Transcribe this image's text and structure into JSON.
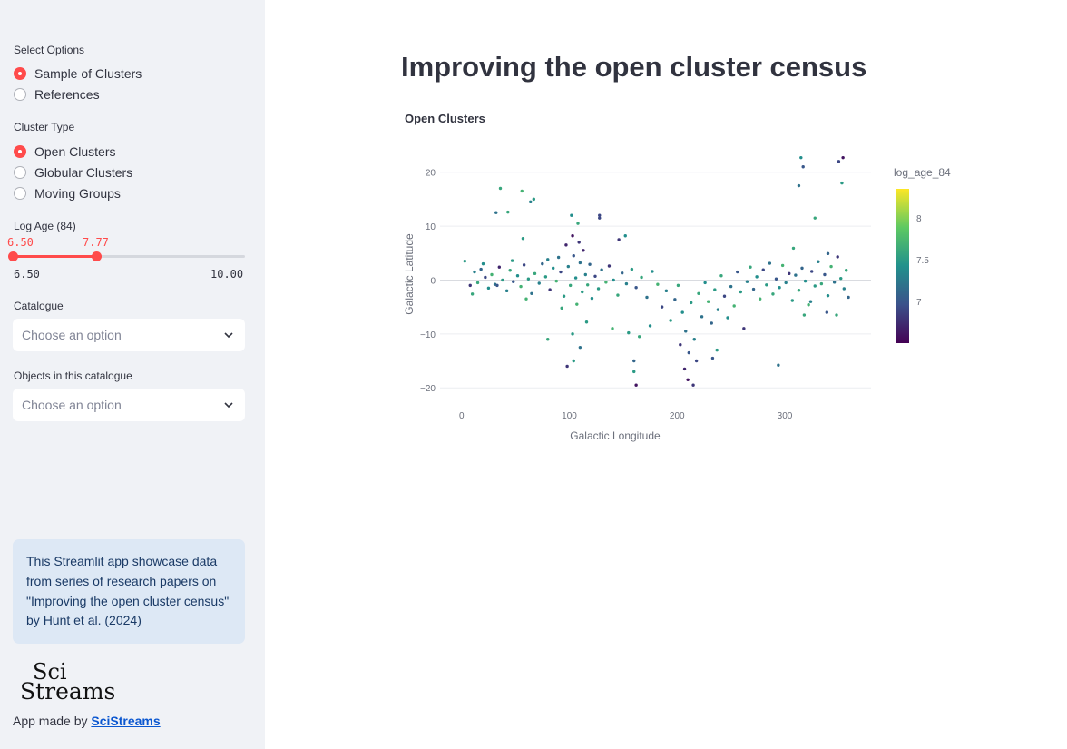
{
  "sidebar": {
    "select_options": {
      "label": "Select Options",
      "options": [
        "Sample of Clusters",
        "References"
      ],
      "selected": "Sample of Clusters"
    },
    "cluster_type": {
      "label": "Cluster Type",
      "options": [
        "Open Clusters",
        "Globular Clusters",
        "Moving Groups"
      ],
      "selected": "Open Clusters"
    },
    "log_age": {
      "label": "Log Age (84)",
      "low_value": "6.50",
      "high_value": "7.77",
      "min": "6.50",
      "max": "10.00"
    },
    "catalogue": {
      "label": "Catalogue",
      "placeholder": "Choose an option"
    },
    "objects": {
      "label": "Objects in this catalogue",
      "placeholder": "Choose an option"
    },
    "info": {
      "text": "This Streamlit app showcase data from series of research papers on \"Improving the open cluster census\" by ",
      "link": "Hunt et al. (2024)"
    },
    "logo": {
      "line1": "Sci",
      "line2": "Streams"
    },
    "made_by": {
      "prefix": "App made by ",
      "link": "SciStreams"
    }
  },
  "main": {
    "title": "Improving the open cluster census"
  },
  "colors": {
    "accent": "#ff4b4b",
    "info_bg": "#dde8f5",
    "sidebar_bg": "#f0f2f6"
  },
  "chart_data": {
    "type": "scatter",
    "title": "Open Clusters",
    "xlabel": "Galactic Longitude",
    "ylabel": "Galactic Latitude",
    "xlim": [
      -20,
      380
    ],
    "ylim": [
      -23,
      25
    ],
    "x_ticks": [
      0,
      100,
      200,
      300
    ],
    "y_ticks": [
      -20,
      -10,
      0,
      10,
      20
    ],
    "colorbar": {
      "title": "log_age_84",
      "range": [
        6.5,
        8.35
      ],
      "ticks": [
        "7",
        "7.5",
        "8"
      ],
      "colormap": "viridis"
    },
    "points": [
      {
        "x": 3,
        "y": 3.5,
        "c": 7.5
      },
      {
        "x": 8,
        "y": -1,
        "c": 6.8
      },
      {
        "x": 12,
        "y": 1.5,
        "c": 7.3
      },
      {
        "x": 15,
        "y": -0.5,
        "c": 7.6
      },
      {
        "x": 18,
        "y": 2,
        "c": 7.1
      },
      {
        "x": 22,
        "y": 0.5,
        "c": 6.9
      },
      {
        "x": 25,
        "y": -1.5,
        "c": 7.4
      },
      {
        "x": 28,
        "y": 1,
        "c": 7.7
      },
      {
        "x": 31,
        "y": -0.8,
        "c": 7.2
      },
      {
        "x": 35,
        "y": 2.4,
        "c": 6.7
      },
      {
        "x": 38,
        "y": 0,
        "c": 7.5
      },
      {
        "x": 42,
        "y": -2,
        "c": 7.3
      },
      {
        "x": 45,
        "y": 1.8,
        "c": 7.6
      },
      {
        "x": 48,
        "y": -0.3,
        "c": 7.0
      },
      {
        "x": 52,
        "y": 0.8,
        "c": 7.4
      },
      {
        "x": 55,
        "y": -1.2,
        "c": 7.7
      },
      {
        "x": 58,
        "y": 2.8,
        "c": 6.9
      },
      {
        "x": 62,
        "y": 0.2,
        "c": 7.5
      },
      {
        "x": 65,
        "y": -2.5,
        "c": 7.2
      },
      {
        "x": 68,
        "y": 1.2,
        "c": 7.6
      },
      {
        "x": 72,
        "y": -0.6,
        "c": 7.3
      },
      {
        "x": 75,
        "y": 3,
        "c": 7.1
      },
      {
        "x": 78,
        "y": 0.6,
        "c": 7.5
      },
      {
        "x": 82,
        "y": -1.8,
        "c": 6.8
      },
      {
        "x": 85,
        "y": 2.2,
        "c": 7.4
      },
      {
        "x": 88,
        "y": -0.2,
        "c": 7.7
      },
      {
        "x": 90,
        "y": 4.2,
        "c": 7.2
      },
      {
        "x": 92,
        "y": 1.5,
        "c": 6.9
      },
      {
        "x": 95,
        "y": -3,
        "c": 7.5
      },
      {
        "x": 97,
        "y": 6.5,
        "c": 6.7
      },
      {
        "x": 99,
        "y": 2.5,
        "c": 7.3
      },
      {
        "x": 101,
        "y": -1,
        "c": 7.6
      },
      {
        "x": 103,
        "y": 8.2,
        "c": 6.6
      },
      {
        "x": 104,
        "y": 4.5,
        "c": 7.0
      },
      {
        "x": 106,
        "y": 0.4,
        "c": 7.4
      },
      {
        "x": 107,
        "y": -4.5,
        "c": 7.7
      },
      {
        "x": 109,
        "y": 7,
        "c": 6.8
      },
      {
        "x": 110,
        "y": 3.2,
        "c": 7.2
      },
      {
        "x": 112,
        "y": -2.2,
        "c": 7.5
      },
      {
        "x": 113,
        "y": 5.5,
        "c": 6.7
      },
      {
        "x": 115,
        "y": 1,
        "c": 7.3
      },
      {
        "x": 117,
        "y": -0.9,
        "c": 7.6
      },
      {
        "x": 119,
        "y": 2.9,
        "c": 7.1
      },
      {
        "x": 121,
        "y": -3.4,
        "c": 7.4
      },
      {
        "x": 124,
        "y": 0.7,
        "c": 6.9
      },
      {
        "x": 127,
        "y": -1.6,
        "c": 7.5
      },
      {
        "x": 130,
        "y": 1.9,
        "c": 7.2
      },
      {
        "x": 134,
        "y": -0.4,
        "c": 7.7
      },
      {
        "x": 137,
        "y": 2.6,
        "c": 6.8
      },
      {
        "x": 141,
        "y": 0,
        "c": 7.4
      },
      {
        "x": 145,
        "y": -2.8,
        "c": 7.6
      },
      {
        "x": 149,
        "y": 1.3,
        "c": 7.1
      },
      {
        "x": 153,
        "y": -0.7,
        "c": 7.3
      },
      {
        "x": 158,
        "y": 2,
        "c": 7.5
      },
      {
        "x": 162,
        "y": -1.4,
        "c": 7.0
      },
      {
        "x": 167,
        "y": 0.5,
        "c": 7.6
      },
      {
        "x": 172,
        "y": -3.2,
        "c": 7.2
      },
      {
        "x": 177,
        "y": 1.6,
        "c": 7.4
      },
      {
        "x": 182,
        "y": -0.8,
        "c": 7.7
      },
      {
        "x": 186,
        "y": -5,
        "c": 6.9
      },
      {
        "x": 190,
        "y": -2,
        "c": 7.3
      },
      {
        "x": 194,
        "y": -7.5,
        "c": 7.5
      },
      {
        "x": 198,
        "y": -3.6,
        "c": 7.1
      },
      {
        "x": 201,
        "y": -1,
        "c": 7.6
      },
      {
        "x": 203,
        "y": -12,
        "c": 6.8
      },
      {
        "x": 205,
        "y": -6,
        "c": 7.4
      },
      {
        "x": 207,
        "y": -16.5,
        "c": 6.7
      },
      {
        "x": 208,
        "y": -9.5,
        "c": 7.2
      },
      {
        "x": 210,
        "y": -18.5,
        "c": 6.6
      },
      {
        "x": 211,
        "y": -13.5,
        "c": 7.0
      },
      {
        "x": 213,
        "y": -4.2,
        "c": 7.5
      },
      {
        "x": 215,
        "y": -19.5,
        "c": 6.8
      },
      {
        "x": 216,
        "y": -11,
        "c": 7.3
      },
      {
        "x": 218,
        "y": -15,
        "c": 6.9
      },
      {
        "x": 220,
        "y": -2.5,
        "c": 7.6
      },
      {
        "x": 223,
        "y": -6.8,
        "c": 7.2
      },
      {
        "x": 226,
        "y": -0.5,
        "c": 7.4
      },
      {
        "x": 229,
        "y": -4,
        "c": 7.7
      },
      {
        "x": 232,
        "y": -8,
        "c": 7.1
      },
      {
        "x": 235,
        "y": -1.8,
        "c": 7.5
      },
      {
        "x": 238,
        "y": -5.5,
        "c": 7.3
      },
      {
        "x": 241,
        "y": 0.8,
        "c": 7.6
      },
      {
        "x": 244,
        "y": -3,
        "c": 6.9
      },
      {
        "x": 247,
        "y": -7,
        "c": 7.4
      },
      {
        "x": 250,
        "y": -1.2,
        "c": 7.2
      },
      {
        "x": 253,
        "y": -4.8,
        "c": 7.7
      },
      {
        "x": 256,
        "y": 1.5,
        "c": 7.0
      },
      {
        "x": 259,
        "y": -2.2,
        "c": 7.5
      },
      {
        "x": 262,
        "y": -9,
        "c": 6.8
      },
      {
        "x": 265,
        "y": -0.3,
        "c": 7.3
      },
      {
        "x": 268,
        "y": 2.4,
        "c": 7.6
      },
      {
        "x": 271,
        "y": -1.7,
        "c": 7.1
      },
      {
        "x": 274,
        "y": 0.6,
        "c": 7.4
      },
      {
        "x": 277,
        "y": -3.5,
        "c": 7.7
      },
      {
        "x": 280,
        "y": 1.9,
        "c": 6.9
      },
      {
        "x": 283,
        "y": -0.9,
        "c": 7.5
      },
      {
        "x": 286,
        "y": 3.1,
        "c": 7.2
      },
      {
        "x": 289,
        "y": -2.6,
        "c": 7.6
      },
      {
        "x": 292,
        "y": 0.2,
        "c": 7.0
      },
      {
        "x": 295,
        "y": -1.4,
        "c": 7.4
      },
      {
        "x": 298,
        "y": 2.7,
        "c": 7.7
      },
      {
        "x": 301,
        "y": -0.5,
        "c": 7.3
      },
      {
        "x": 304,
        "y": 1.2,
        "c": 6.8
      },
      {
        "x": 307,
        "y": -3.8,
        "c": 7.5
      },
      {
        "x": 310,
        "y": 0.9,
        "c": 7.2
      },
      {
        "x": 313,
        "y": -1.9,
        "c": 7.6
      },
      {
        "x": 316,
        "y": 2.2,
        "c": 7.1
      },
      {
        "x": 319,
        "y": -0.2,
        "c": 7.4
      },
      {
        "x": 322,
        "y": -4.6,
        "c": 7.7
      },
      {
        "x": 325,
        "y": 1.6,
        "c": 6.9
      },
      {
        "x": 328,
        "y": -1.1,
        "c": 7.5
      },
      {
        "x": 331,
        "y": 3.4,
        "c": 7.3
      },
      {
        "x": 334,
        "y": -0.7,
        "c": 7.6
      },
      {
        "x": 337,
        "y": 1,
        "c": 7.0
      },
      {
        "x": 340,
        "y": -2.9,
        "c": 7.4
      },
      {
        "x": 343,
        "y": 2.5,
        "c": 7.7
      },
      {
        "x": 346,
        "y": -0.4,
        "c": 7.2
      },
      {
        "x": 349,
        "y": 4.3,
        "c": 6.8
      },
      {
        "x": 352,
        "y": 0.3,
        "c": 7.5
      },
      {
        "x": 355,
        "y": -1.6,
        "c": 7.3
      },
      {
        "x": 357,
        "y": 1.8,
        "c": 7.6
      },
      {
        "x": 359,
        "y": -3.2,
        "c": 7.1
      },
      {
        "x": 10,
        "y": -2.6,
        "c": 7.6
      },
      {
        "x": 20,
        "y": 3,
        "c": 7.4
      },
      {
        "x": 33,
        "y": -1,
        "c": 7.0
      },
      {
        "x": 47,
        "y": 3.6,
        "c": 7.5
      },
      {
        "x": 60,
        "y": -3.5,
        "c": 7.7
      },
      {
        "x": 80,
        "y": 3.8,
        "c": 7.3
      },
      {
        "x": 93,
        "y": -5.2,
        "c": 7.6
      },
      {
        "x": 102,
        "y": 12,
        "c": 7.4
      },
      {
        "x": 108,
        "y": 10.5,
        "c": 7.6
      },
      {
        "x": 116,
        "y": -7.8,
        "c": 7.5
      },
      {
        "x": 128,
        "y": 11.5,
        "c": 6.9
      },
      {
        "x": 140,
        "y": -9,
        "c": 7.7
      },
      {
        "x": 155,
        "y": -9.8,
        "c": 7.5
      },
      {
        "x": 165,
        "y": -10.5,
        "c": 7.6
      },
      {
        "x": 175,
        "y": -8.5,
        "c": 7.4
      },
      {
        "x": 36,
        "y": 17,
        "c": 7.6
      },
      {
        "x": 56,
        "y": 16.5,
        "c": 7.7
      },
      {
        "x": 67,
        "y": 15,
        "c": 7.5
      },
      {
        "x": 32,
        "y": 12.5,
        "c": 7.2
      },
      {
        "x": 43,
        "y": 12.6,
        "c": 7.6
      },
      {
        "x": 57,
        "y": 7.7,
        "c": 7.5
      },
      {
        "x": 64,
        "y": 14.5,
        "c": 7.3
      },
      {
        "x": 128,
        "y": 12,
        "c": 6.9
      },
      {
        "x": 146,
        "y": 7.5,
        "c": 6.8
      },
      {
        "x": 152,
        "y": 8.2,
        "c": 7.4
      },
      {
        "x": 80,
        "y": -11,
        "c": 7.6
      },
      {
        "x": 103,
        "y": -10,
        "c": 7.5
      },
      {
        "x": 98,
        "y": -16,
        "c": 6.8
      },
      {
        "x": 104,
        "y": -15,
        "c": 7.5
      },
      {
        "x": 110,
        "y": -12.5,
        "c": 7.2
      },
      {
        "x": 160,
        "y": -17,
        "c": 7.5
      },
      {
        "x": 162,
        "y": -19.5,
        "c": 6.6
      },
      {
        "x": 160,
        "y": -15,
        "c": 7.1
      },
      {
        "x": 233,
        "y": -14.5,
        "c": 7.0
      },
      {
        "x": 237,
        "y": -13,
        "c": 7.5
      },
      {
        "x": 308,
        "y": 5.9,
        "c": 7.6
      },
      {
        "x": 313,
        "y": 17.5,
        "c": 7.2
      },
      {
        "x": 315,
        "y": 22.7,
        "c": 7.4
      },
      {
        "x": 317,
        "y": 21,
        "c": 7.0
      },
      {
        "x": 328,
        "y": 11.5,
        "c": 7.6
      },
      {
        "x": 340,
        "y": 4.9,
        "c": 7.1
      },
      {
        "x": 350,
        "y": 22,
        "c": 6.9
      },
      {
        "x": 354,
        "y": 22.7,
        "c": 6.6
      },
      {
        "x": 353,
        "y": 18,
        "c": 7.5
      },
      {
        "x": 348,
        "y": -6.5,
        "c": 7.6
      },
      {
        "x": 294,
        "y": -15.8,
        "c": 7.2
      },
      {
        "x": 339,
        "y": -6,
        "c": 7.0
      },
      {
        "x": 318,
        "y": -6.5,
        "c": 7.6
      },
      {
        "x": 324,
        "y": -4,
        "c": 7.3
      }
    ]
  }
}
